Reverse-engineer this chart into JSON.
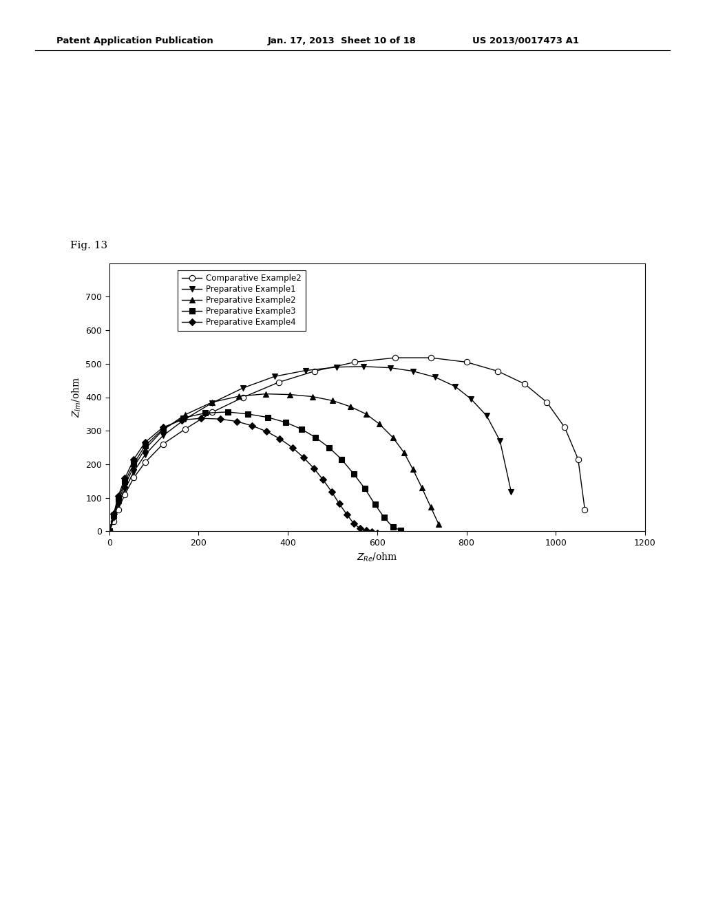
{
  "fig_label": "Fig. 13",
  "header_left": "Patent Application Publication",
  "header_mid": "Jan. 17, 2013  Sheet 10 of 18",
  "header_right": "US 2013/0017473 A1",
  "xlabel": "Z_Re/ohm",
  "ylabel": "Z_Im/ohm",
  "xlim": [
    0,
    1200
  ],
  "ylim": [
    0,
    800
  ],
  "xticks": [
    0,
    200,
    400,
    600,
    800,
    1000,
    1200
  ],
  "yticks": [
    0,
    100,
    200,
    300,
    400,
    500,
    600,
    700
  ],
  "series": [
    {
      "label": "Comparative Example2",
      "color": "#000000",
      "marker": "o",
      "markerfacecolor": "white",
      "markersize": 6,
      "x": [
        0,
        10,
        20,
        35,
        55,
        80,
        120,
        170,
        230,
        300,
        380,
        460,
        550,
        640,
        720,
        800,
        870,
        930,
        980,
        1020,
        1050,
        1065
      ],
      "y": [
        0,
        30,
        65,
        110,
        160,
        205,
        260,
        305,
        355,
        400,
        445,
        478,
        505,
        518,
        518,
        505,
        478,
        440,
        385,
        310,
        215,
        65
      ]
    },
    {
      "label": "Preparative Example1",
      "color": "#000000",
      "marker": "v",
      "markerfacecolor": "#000000",
      "markersize": 6,
      "x": [
        0,
        10,
        20,
        35,
        55,
        80,
        120,
        170,
        230,
        300,
        370,
        440,
        510,
        570,
        630,
        680,
        730,
        775,
        810,
        845,
        875,
        900
      ],
      "y": [
        0,
        40,
        80,
        125,
        178,
        228,
        285,
        335,
        383,
        428,
        462,
        480,
        490,
        492,
        488,
        478,
        460,
        432,
        395,
        345,
        270,
        118
      ]
    },
    {
      "label": "Preparative Example2",
      "color": "#000000",
      "marker": "^",
      "markerfacecolor": "#000000",
      "markersize": 6,
      "x": [
        0,
        10,
        20,
        35,
        55,
        80,
        120,
        170,
        230,
        290,
        350,
        405,
        455,
        500,
        540,
        575,
        605,
        635,
        660,
        680,
        700,
        720,
        738
      ],
      "y": [
        0,
        45,
        90,
        138,
        192,
        245,
        302,
        348,
        385,
        403,
        410,
        408,
        402,
        390,
        372,
        350,
        320,
        280,
        235,
        185,
        130,
        72,
        20
      ]
    },
    {
      "label": "Preparative Example3",
      "color": "#000000",
      "marker": "s",
      "markerfacecolor": "#000000",
      "markersize": 6,
      "x": [
        0,
        10,
        20,
        35,
        55,
        80,
        120,
        165,
        215,
        265,
        310,
        355,
        395,
        430,
        462,
        492,
        520,
        548,
        572,
        595,
        615,
        635,
        652
      ],
      "y": [
        0,
        48,
        97,
        148,
        202,
        255,
        305,
        338,
        353,
        356,
        350,
        340,
        325,
        305,
        280,
        250,
        215,
        170,
        128,
        80,
        42,
        12,
        3
      ]
    },
    {
      "label": "Preparative Example4",
      "color": "#000000",
      "marker": "D",
      "markerfacecolor": "#000000",
      "markersize": 5,
      "x": [
        0,
        10,
        20,
        35,
        55,
        80,
        120,
        162,
        205,
        248,
        285,
        320,
        352,
        382,
        410,
        435,
        458,
        478,
        498,
        515,
        532,
        548,
        562,
        575,
        588,
        600
      ],
      "y": [
        0,
        52,
        105,
        158,
        215,
        265,
        310,
        332,
        337,
        335,
        328,
        315,
        298,
        276,
        250,
        220,
        188,
        155,
        118,
        82,
        50,
        22,
        8,
        2,
        -2,
        -5
      ]
    }
  ],
  "background_color": "#ffffff",
  "plot_bg_color": "#ffffff"
}
